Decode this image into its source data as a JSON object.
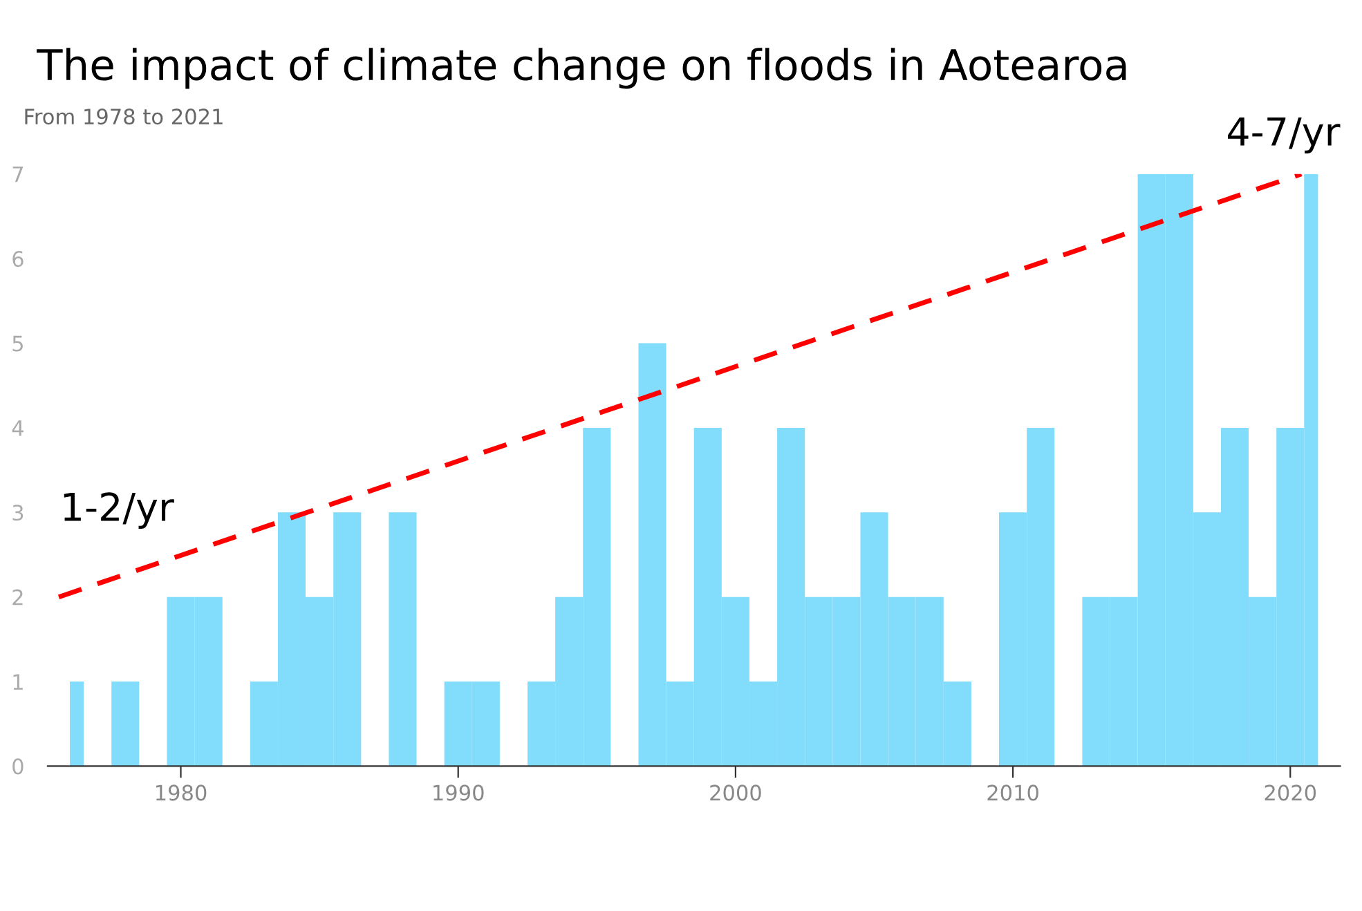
{
  "chart_data": {
    "type": "histogram",
    "title": "The impact of climate change on floods in Aotearoa",
    "subtitle": "From 1978 to 2021",
    "bins": [
      1976,
      1976.5,
      1977.5,
      1978.5,
      1979.5,
      1980.5,
      1981.5,
      1982.5,
      1983.5,
      1984.5,
      1985.5,
      1986.5,
      1987.5,
      1988.5,
      1989.5,
      1990.5,
      1991.5,
      1992.5,
      1993.5,
      1994.5,
      1995.5,
      1996.5,
      1997.5,
      1998.5,
      1999.5,
      2000.5,
      2001.5,
      2002.5,
      2003.5,
      2004.5,
      2005.5,
      2006.5,
      2007.5,
      2008.5,
      2009.5,
      2010.5,
      2011.5,
      2012.5,
      2013.5,
      2014.5,
      2015.5,
      2016.5,
      2017.5,
      2018.5,
      2019.5,
      2020.5,
      2021
    ],
    "values": [
      1,
      0,
      1,
      0,
      2,
      2,
      0,
      1,
      3,
      2,
      3,
      0,
      3,
      0,
      1,
      1,
      0,
      1,
      2,
      4,
      0,
      5,
      1,
      4,
      2,
      1,
      4,
      2,
      2,
      3,
      2,
      2,
      1,
      0,
      3,
      4,
      0,
      2,
      2,
      7,
      7,
      3,
      4,
      2,
      4,
      7
    ],
    "color": "#82dcfc",
    "series": [
      {
        "type": "line",
        "x": [
          1975.6,
          2020.4
        ],
        "values": [
          2,
          7
        ],
        "color": "#ff0000",
        "line_style": "dashed"
      }
    ],
    "xlim": [
      1975.2,
      2021.8
    ],
    "xticks": [
      1980,
      1990,
      2000,
      2010,
      2020
    ],
    "ylim": [
      0,
      7
    ],
    "yticks": [
      0,
      1,
      2,
      3,
      4,
      5,
      6,
      7
    ],
    "grid": false,
    "annotations": [
      "1-2/yr",
      "4-7/yr"
    ]
  }
}
